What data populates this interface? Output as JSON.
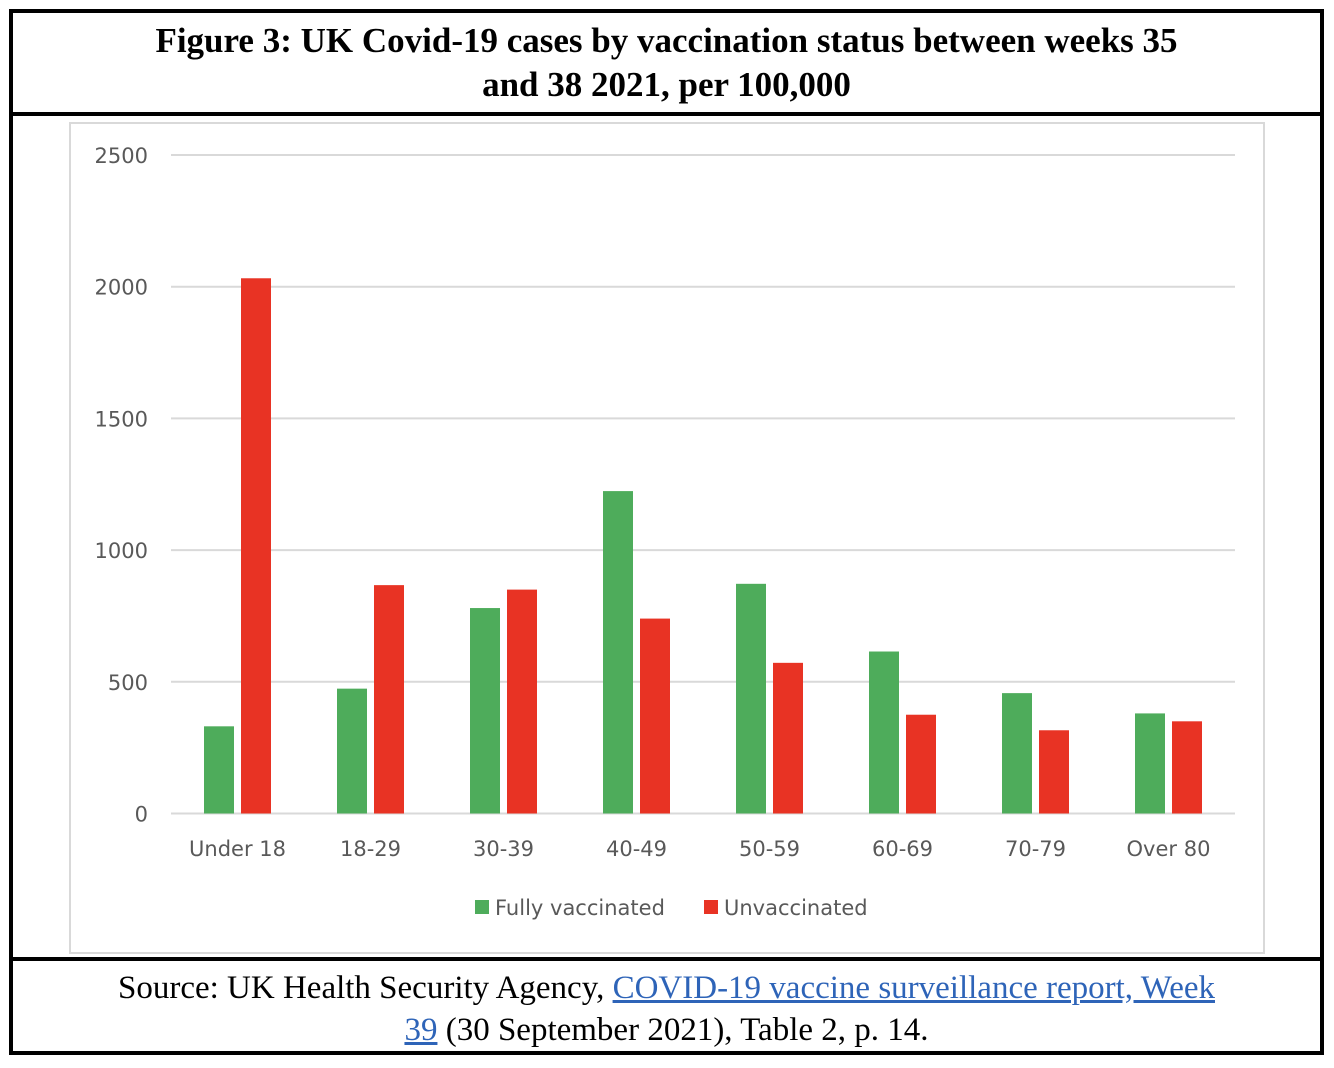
{
  "figure": {
    "title_line1": "Figure 3: UK Covid-19 cases by vaccination status between weeks 35",
    "title_line2": "and 38 2021, per 100,000"
  },
  "source": {
    "prefix": "Source: UK Health Security Agency, ",
    "link_text_part1": "COVID-19 vaccine surveillance report, Week",
    "link_text_part2": "39",
    "suffix": " (30 September 2021), Table 2, p. 14.",
    "link_color": "#2e64b8"
  },
  "chart_data": {
    "type": "bar",
    "title": "Figure 3: UK Covid-19 cases by vaccination status between weeks 35 and 38 2021, per 100,000",
    "xlabel": "",
    "ylabel": "",
    "categories": [
      "Under 18",
      "18-29",
      "30-39",
      "40-49",
      "50-59",
      "60-69",
      "70-79",
      "Over 80"
    ],
    "series": [
      {
        "name": "Fully vaccinated",
        "color": "#4eac5b",
        "values": [
          331,
          474,
          780,
          1224,
          872,
          615,
          457,
          380
        ]
      },
      {
        "name": "Unvaccinated",
        "color": "#e83324",
        "values": [
          2032,
          867,
          850,
          740,
          572,
          375,
          316,
          350
        ]
      }
    ],
    "ylim": [
      0,
      2500
    ],
    "yticks": [
      0,
      500,
      1000,
      1500,
      2000,
      2500
    ],
    "grid": true,
    "legend_position": "bottom"
  }
}
